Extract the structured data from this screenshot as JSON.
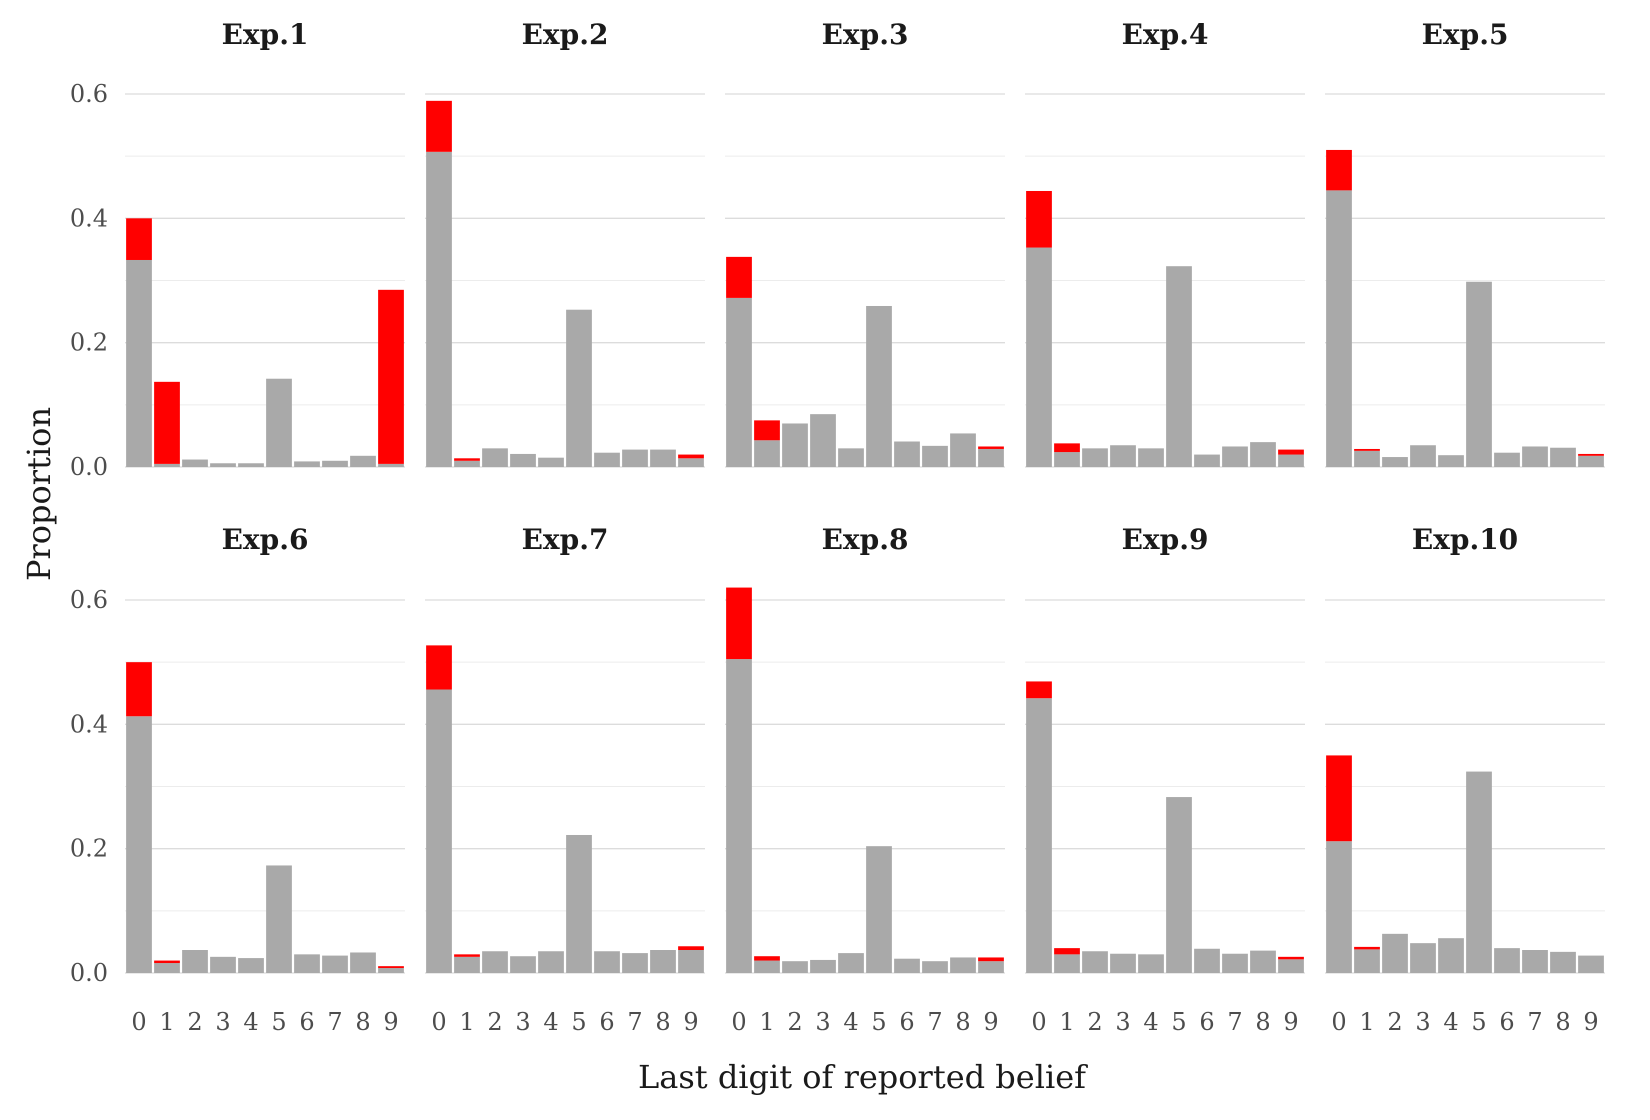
{
  "chart_data": {
    "type": "bar",
    "stacked": true,
    "xlabel": "Last digit of reported belief",
    "ylabel": "Proportion",
    "categories": [
      "0",
      "1",
      "2",
      "3",
      "4",
      "5",
      "6",
      "7",
      "8",
      "9"
    ],
    "ylim": [
      0,
      0.62
    ],
    "yticks": [
      0.0,
      0.2,
      0.4,
      0.6
    ],
    "ytick_labels": [
      "0.0",
      "0.2",
      "0.4",
      "0.6"
    ],
    "series_colors": {
      "base": "#a9a9a9",
      "extra": "#ff0000"
    },
    "panels": [
      {
        "title": "Exp.1",
        "base": [
          0.333,
          0.005,
          0.012,
          0.006,
          0.006,
          0.142,
          0.009,
          0.01,
          0.018,
          0.005
        ],
        "extra": [
          0.067,
          0.132,
          0.0,
          0.0,
          0.0,
          0.0,
          0.0,
          0.0,
          0.0,
          0.28
        ]
      },
      {
        "title": "Exp.2",
        "base": [
          0.507,
          0.01,
          0.03,
          0.021,
          0.015,
          0.253,
          0.023,
          0.028,
          0.028,
          0.014
        ],
        "extra": [
          0.082,
          0.004,
          0.0,
          0.0,
          0.0,
          0.0,
          0.0,
          0.0,
          0.0,
          0.006
        ]
      },
      {
        "title": "Exp.3",
        "base": [
          0.272,
          0.043,
          0.07,
          0.085,
          0.03,
          0.259,
          0.041,
          0.034,
          0.054,
          0.029
        ],
        "extra": [
          0.066,
          0.032,
          0.0,
          0.0,
          0.0,
          0.0,
          0.0,
          0.0,
          0.0,
          0.004
        ]
      },
      {
        "title": "Exp.4",
        "base": [
          0.353,
          0.024,
          0.03,
          0.035,
          0.03,
          0.323,
          0.02,
          0.033,
          0.04,
          0.02
        ],
        "extra": [
          0.091,
          0.014,
          0.0,
          0.0,
          0.0,
          0.0,
          0.0,
          0.0,
          0.0,
          0.008
        ]
      },
      {
        "title": "Exp.5",
        "base": [
          0.445,
          0.026,
          0.016,
          0.035,
          0.019,
          0.298,
          0.023,
          0.033,
          0.031,
          0.018
        ],
        "extra": [
          0.065,
          0.003,
          0.0,
          0.0,
          0.0,
          0.0,
          0.0,
          0.0,
          0.0,
          0.003
        ]
      },
      {
        "title": "Exp.6",
        "base": [
          0.413,
          0.016,
          0.037,
          0.026,
          0.024,
          0.173,
          0.03,
          0.028,
          0.033,
          0.008
        ],
        "extra": [
          0.087,
          0.004,
          0.0,
          0.0,
          0.0,
          0.0,
          0.0,
          0.0,
          0.0,
          0.003
        ]
      },
      {
        "title": "Exp.7",
        "base": [
          0.456,
          0.026,
          0.035,
          0.027,
          0.035,
          0.222,
          0.035,
          0.032,
          0.037,
          0.037
        ],
        "extra": [
          0.071,
          0.004,
          0.0,
          0.0,
          0.0,
          0.0,
          0.0,
          0.0,
          0.0,
          0.006
        ]
      },
      {
        "title": "Exp.8",
        "base": [
          0.505,
          0.02,
          0.019,
          0.021,
          0.032,
          0.204,
          0.023,
          0.019,
          0.025,
          0.019
        ],
        "extra": [
          0.115,
          0.007,
          0.0,
          0.0,
          0.0,
          0.0,
          0.0,
          0.0,
          0.0,
          0.006
        ]
      },
      {
        "title": "Exp.9",
        "base": [
          0.442,
          0.03,
          0.035,
          0.031,
          0.03,
          0.283,
          0.039,
          0.031,
          0.036,
          0.022
        ],
        "extra": [
          0.027,
          0.01,
          0.0,
          0.0,
          0.0,
          0.0,
          0.0,
          0.0,
          0.0,
          0.004
        ]
      },
      {
        "title": "Exp.10",
        "base": [
          0.212,
          0.038,
          0.063,
          0.048,
          0.056,
          0.324,
          0.04,
          0.037,
          0.034,
          0.028
        ],
        "extra": [
          0.138,
          0.004,
          0.0,
          0.0,
          0.0,
          0.0,
          0.0,
          0.0,
          0.0,
          0.0
        ]
      }
    ]
  }
}
